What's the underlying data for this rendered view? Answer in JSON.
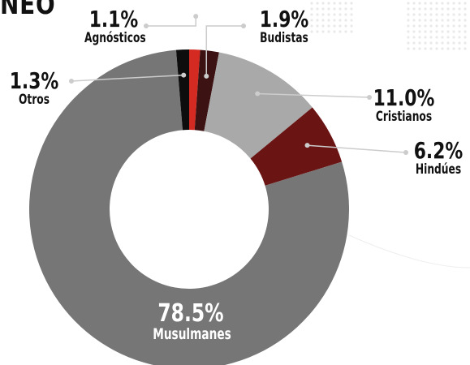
{
  "page": {
    "title_fragment": "NEO"
  },
  "chart_data": {
    "type": "pie",
    "variant": "donut",
    "title": "",
    "slices": [
      {
        "label": "Agnósticos",
        "value": 1.1,
        "display": "1.1%",
        "color": "#d42a22"
      },
      {
        "label": "Budistas",
        "value": 1.9,
        "display": "1.9%",
        "color": "#3d1212"
      },
      {
        "label": "Cristianos",
        "value": 11.0,
        "display": "11.0%",
        "color": "#a9a9a9"
      },
      {
        "label": "Hindúes",
        "value": 6.2,
        "display": "6.2%",
        "color": "#6b1414"
      },
      {
        "label": "Musulmanes",
        "value": 78.5,
        "display": "78.5%",
        "color": "#767676"
      },
      {
        "label": "Otros",
        "value": 1.3,
        "display": "1.3%",
        "color": "#0d0d0d"
      }
    ],
    "legend": "none",
    "colors": {
      "leader_line": "#cccccc",
      "hole": "#ffffff"
    }
  }
}
